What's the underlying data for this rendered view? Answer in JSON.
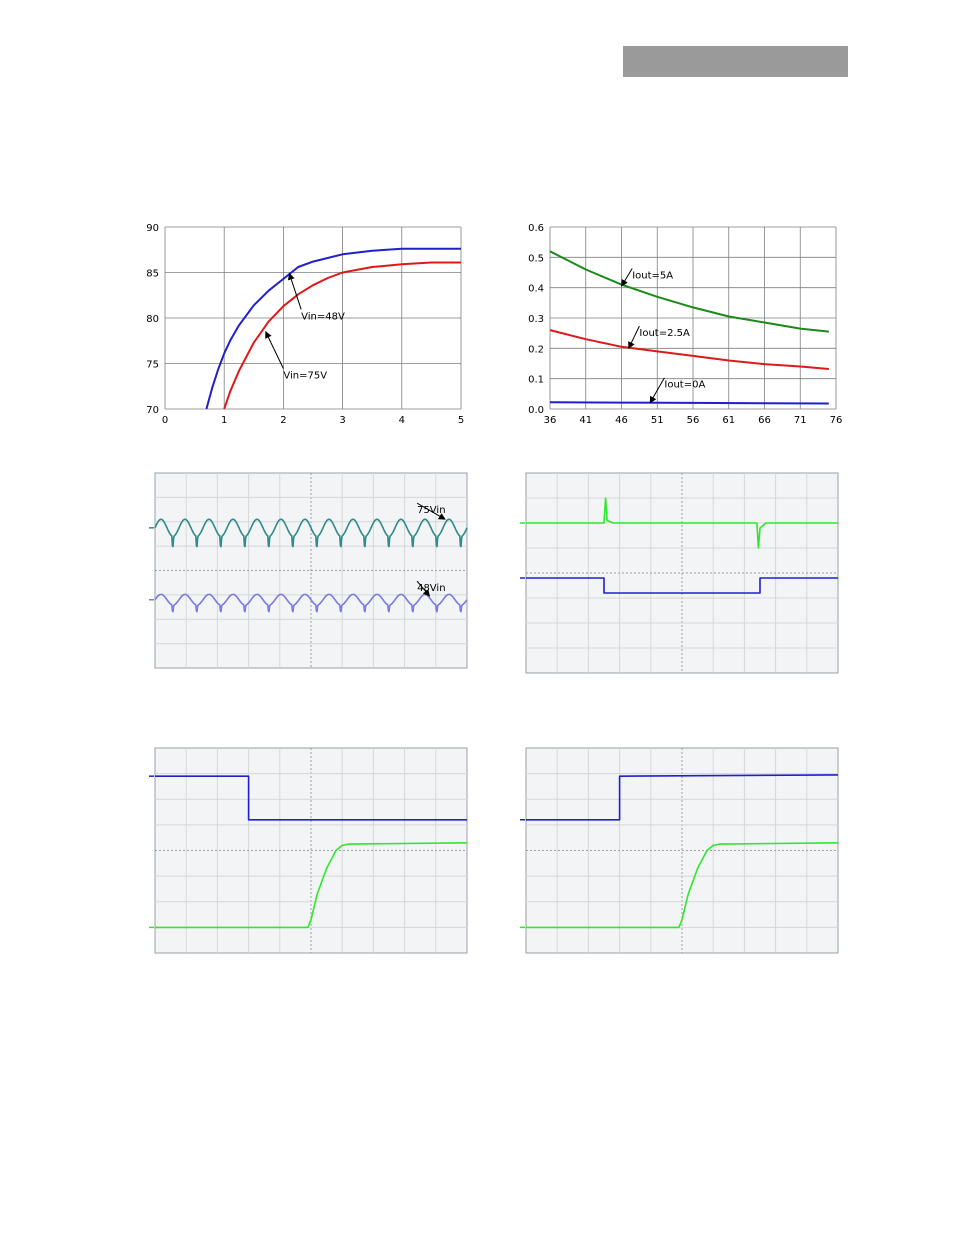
{
  "colors": {
    "header_bar": "#9a9a9a",
    "blue": "#1f1fd0",
    "red": "#e01818",
    "green": "#1a8a1a",
    "bright_green": "#2ee82e",
    "teal": "#2f8a88",
    "violet": "#7a7ae0"
  },
  "chart_data": [
    {
      "id": "efficiency",
      "type": "line",
      "xlim": [
        0,
        5
      ],
      "ylim": [
        70,
        90
      ],
      "xticks": [
        "0",
        "1",
        "2",
        "3",
        "4",
        "5"
      ],
      "yticks": [
        "70",
        "75",
        "80",
        "85",
        "90"
      ],
      "grid": true,
      "series": [
        {
          "name": "Vin=48V",
          "color": "blue",
          "x": [
            0.7,
            0.8,
            0.9,
            1.0,
            1.1,
            1.25,
            1.5,
            1.75,
            2.0,
            2.25,
            2.5,
            3.0,
            3.5,
            4.0,
            4.5,
            5.0
          ],
          "y": [
            70.0,
            72.4,
            74.4,
            76.1,
            77.5,
            79.2,
            81.4,
            83.0,
            84.3,
            85.6,
            86.2,
            87.0,
            87.4,
            87.6,
            87.6,
            87.6
          ]
        },
        {
          "name": "Vin=75V",
          "color": "red",
          "x": [
            1.0,
            1.1,
            1.25,
            1.5,
            1.75,
            2.0,
            2.25,
            2.5,
            2.75,
            3.0,
            3.5,
            4.0,
            4.5,
            5.0
          ],
          "y": [
            70.0,
            71.9,
            74.2,
            77.3,
            79.6,
            81.3,
            82.6,
            83.6,
            84.4,
            85.0,
            85.6,
            85.9,
            86.1,
            86.1
          ]
        }
      ],
      "annotations": [
        {
          "text": "Vin=48V",
          "arrow_to": [
            2.1,
            84.9
          ],
          "text_at": [
            2.3,
            80.5
          ]
        },
        {
          "text": "Vin=75V",
          "arrow_to": [
            1.7,
            78.5
          ],
          "text_at": [
            2.0,
            74.0
          ]
        }
      ]
    },
    {
      "id": "no-load-power",
      "type": "line",
      "xlim": [
        36,
        76
      ],
      "ylim": [
        0.0,
        0.6
      ],
      "xticks": [
        "36",
        "41",
        "46",
        "51",
        "56",
        "61",
        "66",
        "71",
        "76"
      ],
      "yticks": [
        "0.0",
        "0.1",
        "0.2",
        "0.3",
        "0.4",
        "0.5",
        "0.6"
      ],
      "grid": true,
      "series": [
        {
          "name": "Iout=5A",
          "color": "green",
          "x": [
            36,
            41,
            46,
            51,
            56,
            61,
            66,
            71,
            75
          ],
          "y": [
            0.52,
            0.46,
            0.41,
            0.37,
            0.335,
            0.305,
            0.285,
            0.265,
            0.255
          ]
        },
        {
          "name": "Iout=2.5A",
          "color": "red",
          "x": [
            36,
            41,
            46,
            51,
            56,
            61,
            66,
            71,
            75
          ],
          "y": [
            0.26,
            0.23,
            0.205,
            0.19,
            0.175,
            0.16,
            0.148,
            0.14,
            0.132
          ]
        },
        {
          "name": "Iout=0A",
          "color": "blue",
          "x": [
            36,
            46,
            56,
            66,
            75
          ],
          "y": [
            0.022,
            0.021,
            0.02,
            0.019,
            0.018
          ]
        }
      ],
      "annotations": [
        {
          "text": "Iout=5A",
          "arrow_to": [
            46,
            0.405
          ],
          "text_at": [
            47.5,
            0.45
          ]
        },
        {
          "text": "Iout=2.5A",
          "arrow_to": [
            47,
            0.2
          ],
          "text_at": [
            48.5,
            0.26
          ]
        },
        {
          "text": "Iout=0A",
          "arrow_to": [
            50,
            0.02
          ],
          "text_at": [
            52,
            0.09
          ]
        }
      ]
    },
    {
      "id": "ripple-scope",
      "type": "line",
      "xlim": [
        0,
        10
      ],
      "ylim": [
        0,
        8
      ],
      "grid": true,
      "series": [
        {
          "name": "75Vin",
          "color": "teal",
          "level": 5.75,
          "amplitude": 0.35,
          "cycles": 13
        },
        {
          "name": "48Vin",
          "color": "violet",
          "level": 2.8,
          "amplitude": 0.22,
          "cycles": 13
        }
      ],
      "annotations": [
        {
          "text": "75Vin",
          "arrow_to": [
            9.3,
            6.1
          ],
          "text_at": [
            8.4,
            6.6
          ]
        },
        {
          "text": "48Vin",
          "arrow_to": [
            8.8,
            2.95
          ],
          "text_at": [
            8.4,
            3.4
          ]
        }
      ]
    },
    {
      "id": "transient-scope",
      "type": "line",
      "xlim": [
        0,
        10
      ],
      "ylim": [
        0,
        8
      ],
      "grid": true,
      "series": [
        {
          "name": "",
          "color": "bright_green",
          "x": [
            0,
            2.5,
            2.55,
            2.6,
            2.8,
            3.1,
            7.4,
            7.45,
            7.5,
            7.7,
            8.0,
            10
          ],
          "y": [
            6.0,
            6.0,
            7.0,
            6.1,
            6.0,
            6.0,
            6.0,
            5.0,
            5.8,
            6.0,
            6.0,
            6.0
          ]
        },
        {
          "name": "",
          "color": "blue",
          "x": [
            0,
            2.5,
            2.5,
            7.5,
            7.5,
            10
          ],
          "y": [
            3.8,
            3.8,
            3.2,
            3.2,
            3.8,
            3.8
          ]
        }
      ]
    },
    {
      "id": "startup-scope-1",
      "type": "line",
      "xlim": [
        0,
        10
      ],
      "ylim": [
        0,
        8
      ],
      "grid": true,
      "series": [
        {
          "name": "",
          "color": "blue",
          "x": [
            0,
            3.0,
            3.0,
            10
          ],
          "y": [
            6.9,
            6.9,
            5.2,
            5.2
          ]
        },
        {
          "name": "",
          "color": "bright_green",
          "x": [
            0,
            4.9,
            5.0,
            5.2,
            5.5,
            5.8,
            6.0,
            6.2,
            10
          ],
          "y": [
            1.0,
            1.0,
            1.3,
            2.3,
            3.3,
            4.0,
            4.2,
            4.25,
            4.3
          ]
        }
      ]
    },
    {
      "id": "startup-scope-2",
      "type": "line",
      "xlim": [
        0,
        10
      ],
      "ylim": [
        0,
        8
      ],
      "grid": true,
      "series": [
        {
          "name": "",
          "color": "blue",
          "x": [
            0,
            3.0,
            3.0,
            10
          ],
          "y": [
            5.2,
            5.2,
            6.9,
            6.95
          ]
        },
        {
          "name": "",
          "color": "bright_green",
          "x": [
            0,
            4.9,
            5.0,
            5.2,
            5.5,
            5.8,
            6.0,
            6.2,
            10
          ],
          "y": [
            1.0,
            1.0,
            1.3,
            2.3,
            3.3,
            4.0,
            4.2,
            4.25,
            4.3
          ]
        }
      ]
    }
  ]
}
